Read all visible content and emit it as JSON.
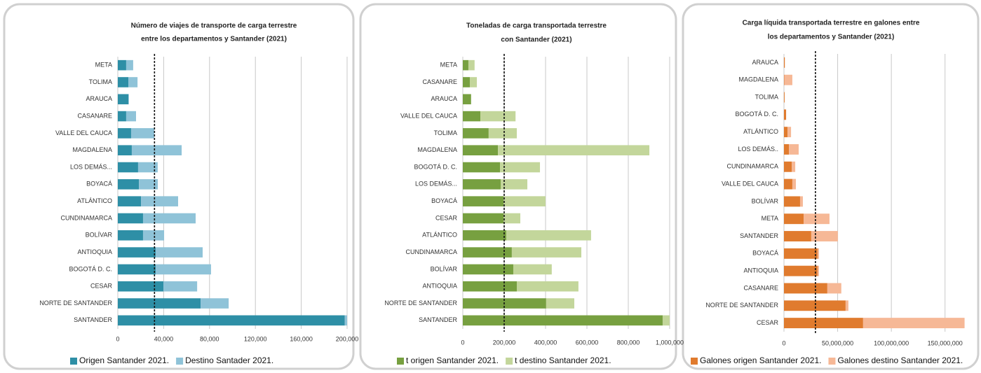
{
  "chart_data": [
    {
      "type": "bar_stacked_h",
      "title": [
        "Número de viajes de transporte de carga terrestre",
        "entre los departamentos y Santander (2021)"
      ],
      "categories": [
        "META",
        "TOLIMA",
        "ARAUCA",
        "CASANARE",
        "VALLE DEL CAUCA",
        "MAGDALENA",
        "LOS DEMÁS...",
        "BOYACÁ",
        "ATLÁNTICO",
        "CUNDINAMARCA",
        "BOLÍVAR",
        "ANTIOQUIA",
        "BOGOTÁ D. C.",
        "CESAR",
        "NORTE DE SANTANDER",
        "SANTANDER"
      ],
      "series": [
        {
          "name": "Origen Santander 2021.",
          "color": "#2e8fa6",
          "values": [
            7300,
            9200,
            9200,
            7300,
            11600,
            12200,
            17700,
            18400,
            20200,
            22000,
            22000,
            33000,
            33000,
            39800,
            72200,
            198000
          ]
        },
        {
          "name": "Destino Santader 2021.",
          "color": "#8fc3d8",
          "values": [
            6100,
            8000,
            500,
            8600,
            20200,
            43500,
            17100,
            16500,
            32400,
            45900,
            18400,
            41000,
            48300,
            29400,
            24500,
            2000
          ]
        }
      ],
      "xlim": [
        0,
        200000
      ],
      "xticks": [
        0,
        {
          "value": 40000,
          "label": "40,000"
        },
        {
          "value": 80000,
          "label": "80,000"
        },
        {
          "value": 120000,
          "label": "120,000"
        },
        {
          "value": 160000,
          "label": "160,000"
        },
        {
          "value": 200000,
          "label": "200,000"
        }
      ],
      "reference_line": 32000,
      "grid": true
    },
    {
      "type": "bar_stacked_h",
      "title": [
        "Toneladas de carga transportada terrestre",
        "con Santander (2021)"
      ],
      "categories": [
        "META",
        "CASANARE",
        "ARAUCA",
        "VALLE DEL CAUCA",
        "TOLIMA",
        "MAGDALENA",
        "BOGOTÁ D. C.",
        "LOS DEMÁS...",
        "BOYACÁ",
        "CESAR",
        "ATLÁNTICO",
        "CUNDINAMARCA",
        "BOLÍVAR",
        "ANTIOQUIA",
        "NORTE DE SANTANDER",
        "SANTANDER"
      ],
      "series": [
        {
          "name": "t origen Santander 2021.",
          "color": "#77a040",
          "values": [
            27000,
            34000,
            40000,
            85000,
            125000,
            170000,
            180000,
            183000,
            197000,
            197000,
            210000,
            237000,
            244000,
            261000,
            403000,
            966000
          ]
        },
        {
          "name": "t destino Santander 2021.",
          "color": "#c3d69b",
          "values": [
            30000,
            34000,
            0,
            170000,
            136000,
            732000,
            193000,
            129000,
            203000,
            81000,
            410000,
            336000,
            186000,
            298000,
            136000,
            34000
          ]
        }
      ],
      "xlim": [
        0,
        1000000
      ],
      "xticks": [
        0,
        {
          "value": 200000,
          "label": "200,000"
        },
        {
          "value": 400000,
          "label": "400,000"
        },
        {
          "value": 600000,
          "label": "600,000"
        },
        {
          "value": 800000,
          "label": "800,000"
        },
        {
          "value": 1000000,
          "label": "1,000,000"
        }
      ],
      "reference_line": 200000,
      "grid": true
    },
    {
      "type": "bar_stacked_h",
      "title": [
        "Carga líquida transportada terrestre en galones entre",
        "los departamentos y Santander (2021)"
      ],
      "categories": [
        "ARAUCA",
        "MAGDALENA",
        "TOLIMA",
        "BOGOTÁ D. C.",
        "ATLÁNTICO",
        "LOS DEMÁS..",
        "CUNDINAMARCA",
        "VALLE DEL CAUCA",
        "BOLÍVAR",
        "META",
        "SANTANDER",
        "BOYACÁ",
        "ANTIOQUIA",
        "CASANARE",
        "NORTE DE SANTANDER",
        "CESAR"
      ],
      "series": [
        {
          "name": "Galones origen Santander 2021.",
          "color": "#e07b2e",
          "values": [
            800000,
            300000,
            600000,
            2000000,
            3300000,
            4600000,
            7200000,
            7800000,
            15000000,
            18300000,
            25400000,
            31300000,
            31300000,
            40400000,
            57400000,
            73700000
          ]
        },
        {
          "name": "Galones destino Santander 2021.",
          "color": "#f6b896",
          "values": [
            0,
            7500000,
            0,
            0,
            3300000,
            9100000,
            3300000,
            3300000,
            2600000,
            24100000,
            24800000,
            1300000,
            1300000,
            13000000,
            2600000,
            94500000
          ]
        }
      ],
      "xlim": [
        0,
        175000000
      ],
      "xticks": [
        0,
        {
          "value": 50000000,
          "label": "50,000,000"
        },
        {
          "value": 100000000,
          "label": "100,000,000"
        },
        {
          "value": 150000000,
          "label": "150,000,000"
        }
      ],
      "reference_line": 29300000,
      "grid": true
    }
  ]
}
